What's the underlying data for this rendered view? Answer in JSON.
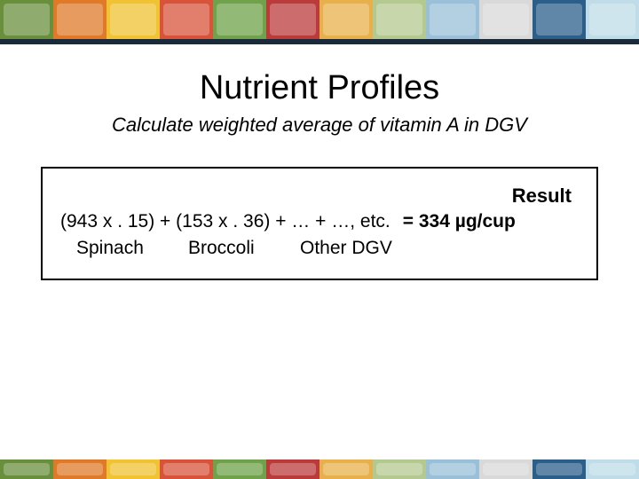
{
  "banner": {
    "top_colors": [
      "#6a8f3c",
      "#e07a28",
      "#f1c232",
      "#d9533b",
      "#6fa24a",
      "#bb3b3b",
      "#e8b04b",
      "#b4c98f",
      "#9ac0d9",
      "#d9d9d9",
      "#2b5f8a",
      "#bfdce8"
    ],
    "bottom_colors": [
      "#6a8f3c",
      "#e07a28",
      "#f1c232",
      "#d9533b",
      "#6fa24a",
      "#bb3b3b",
      "#e8b04b",
      "#b4c98f",
      "#9ac0d9",
      "#d9d9d9",
      "#2b5f8a",
      "#bfdce8"
    ]
  },
  "title": "Nutrient Profiles",
  "subtitle": "Calculate weighted average of vitamin A in DGV",
  "calc": {
    "result_label": "Result",
    "formula": "(943 x . 15) + (153 x . 36)  +  …  +  …, etc.",
    "equals": "= 334 µg/cup",
    "labels": {
      "spinach": "Spinach",
      "broccoli": "Broccoli",
      "other": "Other DGV"
    }
  }
}
